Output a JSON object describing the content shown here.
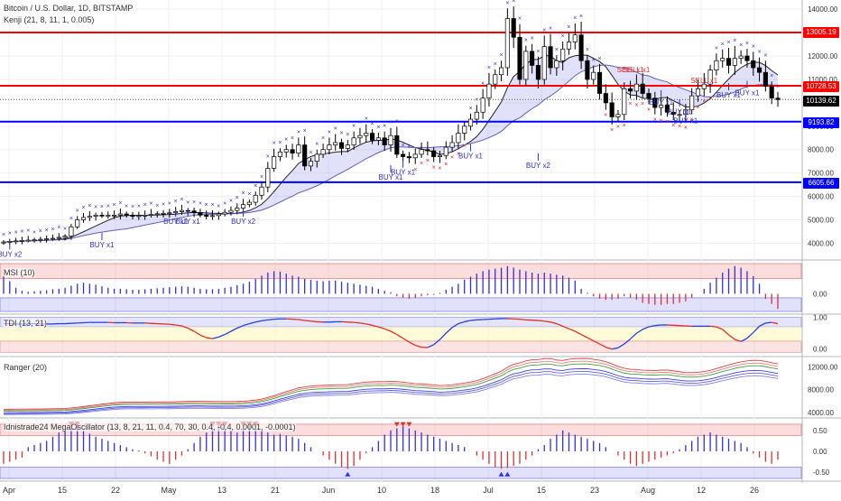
{
  "chart_data": [
    {
      "type": "candlestick",
      "title": "Bitcoin / U.S. Dollar, 1D, BITSTAMP",
      "subtitle": "Kenji (21, 8, 11, 1, 0.005)",
      "x_ticks": [
        "Apr",
        "15",
        "22",
        "May",
        "13",
        "21",
        "Jun",
        "10",
        "18",
        "Jul",
        "15",
        "23",
        "Aug",
        "12",
        "26"
      ],
      "y_ticks": [
        "4000.00",
        "5000.00",
        "6000.00",
        "7000.00",
        "8000.00",
        "9000.00",
        "10000.00",
        "11000.00",
        "12000.00",
        "13000.00",
        "14000.00"
      ],
      "ylim": [
        3400,
        14200
      ],
      "price_lines": [
        {
          "label": "13005.19",
          "value": 13005.19,
          "color": "#ff0000"
        },
        {
          "label": "10728.53",
          "value": 10728.53,
          "color": "#ff0000"
        },
        {
          "label": "9193.82",
          "value": 9193.82,
          "color": "#0000ff"
        },
        {
          "label": "6605.66",
          "value": 6605.66,
          "color": "#0000ff"
        }
      ],
      "last_price": {
        "label": "10139.62",
        "value": 10139.62
      },
      "closes": [
        4050,
        4080,
        4100,
        4120,
        4130,
        4150,
        4170,
        4190,
        4210,
        4250,
        4300,
        4700,
        5000,
        5100,
        5150,
        5200,
        5180,
        5190,
        5200,
        5250,
        5200,
        5150,
        5180,
        5200,
        5230,
        5260,
        5280,
        5300,
        5350,
        5400,
        5380,
        5300,
        5200,
        5150,
        5180,
        5250,
        5320,
        5400,
        5500,
        5650,
        5750,
        6050,
        6400,
        7200,
        7700,
        7900,
        8000,
        7850,
        8200,
        7300,
        7500,
        7800,
        8000,
        8200,
        8300,
        8050,
        8200,
        8500,
        8600,
        8700,
        8400,
        8500,
        8200,
        8600,
        7800,
        7700,
        7650,
        7800,
        8000,
        7950,
        7700,
        7750,
        8100,
        8300,
        8700,
        9000,
        9300,
        9600,
        10200,
        10800,
        11200,
        11500,
        13600,
        12800,
        11000,
        12200,
        11600,
        11000,
        12400,
        11500,
        11800,
        12300,
        12600,
        12900,
        11800,
        11000,
        11300,
        10400,
        10000,
        9400,
        9500,
        10600,
        10500,
        10800,
        10400,
        10200,
        9800,
        9900,
        9600,
        9500,
        9500,
        9700,
        10300,
        10600,
        10800,
        11400,
        11800,
        11900,
        11600,
        11900,
        12000,
        11800,
        11500,
        11300,
        10700,
        10200,
        10139.62
      ],
      "buy_labels": [
        {
          "text": "BUY x2",
          "value": 3500
        },
        {
          "text": "BUY x1",
          "value": 3900
        },
        {
          "text": "BUY x1",
          "value": 4900
        },
        {
          "text": "BUY x1",
          "value": 4900
        },
        {
          "text": "BUY x2",
          "value": 4900
        },
        {
          "text": "BUY x1",
          "value": 6800
        },
        {
          "text": "BUY x1",
          "value": 7000
        },
        {
          "text": "BUY x1",
          "value": 7700
        },
        {
          "text": "BUY x2",
          "value": 7300
        },
        {
          "text": "BUY x1",
          "value": 10000
        },
        {
          "text": "BUY x1",
          "value": 9600
        },
        {
          "text": "BUY x1",
          "value": 9200
        },
        {
          "text": "BUY x1",
          "value": 10300
        },
        {
          "text": "BUY x1",
          "value": 10400
        }
      ],
      "sell_labels": [
        {
          "text": "SELL x1",
          "value": 11300
        },
        {
          "text": "SELL x1",
          "value": 11300
        },
        {
          "text": "SELL x1",
          "value": 10850
        }
      ]
    },
    {
      "type": "bar",
      "title": "MSI (10)",
      "y_ticks": [
        "0.00"
      ],
      "ylim": [
        -0.35,
        0.6
      ],
      "values": [
        0.35,
        0.25,
        0.12,
        0.06,
        0.04,
        0.05,
        0.06,
        0.07,
        0.09,
        0.1,
        0.12,
        0.16,
        0.2,
        0.22,
        0.2,
        0.18,
        0.15,
        0.12,
        0.1,
        0.1,
        0.09,
        0.08,
        0.08,
        0.09,
        0.1,
        0.11,
        0.12,
        0.13,
        0.14,
        0.15,
        0.14,
        0.12,
        0.1,
        0.09,
        0.09,
        0.1,
        0.12,
        0.14,
        0.17,
        0.2,
        0.24,
        0.3,
        0.36,
        0.42,
        0.45,
        0.44,
        0.4,
        0.36,
        0.34,
        0.3,
        0.28,
        0.26,
        0.25,
        0.26,
        0.26,
        0.24,
        0.22,
        0.2,
        0.18,
        0.16,
        0.14,
        0.1,
        0.06,
        0.03,
        -0.05,
        -0.08,
        -0.1,
        -0.08,
        -0.05,
        -0.03,
        -0.02,
        0.02,
        0.08,
        0.14,
        0.2,
        0.28,
        0.34,
        0.4,
        0.45,
        0.48,
        0.5,
        0.52,
        0.55,
        0.52,
        0.48,
        0.45,
        0.42,
        0.4,
        0.42,
        0.4,
        0.38,
        0.36,
        0.32,
        0.26,
        0.1,
        0.02,
        -0.05,
        -0.1,
        -0.12,
        -0.12,
        -0.1,
        -0.05,
        -0.08,
        -0.12,
        -0.18,
        -0.2,
        -0.22,
        -0.22,
        -0.2,
        -0.2,
        -0.18,
        -0.15,
        -0.08,
        0.0,
        0.1,
        0.22,
        0.32,
        0.42,
        0.5,
        0.55,
        0.52,
        0.45,
        0.35,
        0.2,
        -0.1,
        -0.2,
        -0.3
      ]
    },
    {
      "type": "line",
      "title": "TDI (13, 21)",
      "y_ticks": [
        "1.00",
        "0.00"
      ],
      "ylim": [
        -0.15,
        1.1
      ],
      "values": [
        0.8,
        0.8,
        0.79,
        0.79,
        0.8,
        0.8,
        0.8,
        0.79,
        0.79,
        0.8,
        0.8,
        0.81,
        0.82,
        0.83,
        0.84,
        0.84,
        0.84,
        0.84,
        0.83,
        0.83,
        0.83,
        0.82,
        0.82,
        0.82,
        0.81,
        0.8,
        0.79,
        0.78,
        0.76,
        0.73,
        0.66,
        0.56,
        0.44,
        0.36,
        0.33,
        0.38,
        0.46,
        0.56,
        0.66,
        0.74,
        0.8,
        0.85,
        0.89,
        0.92,
        0.94,
        0.95,
        0.95,
        0.94,
        0.93,
        0.9,
        0.88,
        0.86,
        0.85,
        0.85,
        0.86,
        0.86,
        0.85,
        0.84,
        0.82,
        0.79,
        0.75,
        0.7,
        0.64,
        0.56,
        0.46,
        0.34,
        0.22,
        0.12,
        0.06,
        0.05,
        0.14,
        0.3,
        0.5,
        0.68,
        0.8,
        0.86,
        0.9,
        0.92,
        0.93,
        0.94,
        0.95,
        0.96,
        0.96,
        0.95,
        0.94,
        0.92,
        0.91,
        0.9,
        0.88,
        0.85,
        0.8,
        0.72,
        0.64,
        0.56,
        0.46,
        0.36,
        0.26,
        0.16,
        0.06,
        0.0,
        0.04,
        0.16,
        0.32,
        0.5,
        0.62,
        0.7,
        0.74,
        0.76,
        0.76,
        0.75,
        0.74,
        0.73,
        0.72,
        0.72,
        0.72,
        0.72,
        0.7,
        0.62,
        0.45,
        0.3,
        0.24,
        0.34,
        0.52,
        0.72,
        0.82,
        0.84,
        0.8
      ]
    },
    {
      "type": "line",
      "title": "Ranger (20)",
      "y_ticks": [
        "12000.00",
        "8000.00",
        "4000.00"
      ],
      "ylim": [
        3500,
        13500
      ]
    },
    {
      "type": "bar",
      "title": "Idnistrade24 MegaOscillator (13, 8, 21, 11, 0.4, 70, 30, 0.4, -0.4, 0.0001, -0.0001)",
      "y_ticks": [
        "0.50",
        "0.00",
        "-0.50"
      ],
      "ylim": [
        -0.65,
        0.8
      ],
      "values": [
        -0.3,
        -0.25,
        -0.2,
        -0.15,
        0.1,
        0.15,
        0.2,
        0.25,
        0.35,
        0.45,
        0.5,
        0.55,
        0.6,
        0.5,
        0.42,
        0.35,
        0.3,
        0.25,
        0.2,
        0.15,
        0.1,
        0.05,
        0.02,
        -0.05,
        -0.12,
        -0.2,
        -0.25,
        -0.3,
        -0.2,
        -0.1,
        0.05,
        0.2,
        0.35,
        0.45,
        0.55,
        0.6,
        0.55,
        0.5,
        0.45,
        0.55,
        0.6,
        0.55,
        0.5,
        0.45,
        0.4,
        0.42,
        0.38,
        0.35,
        0.3,
        0.2,
        0.1,
        0.0,
        -0.1,
        -0.2,
        -0.3,
        -0.38,
        -0.42,
        -0.35,
        -0.2,
        -0.05,
        0.1,
        0.25,
        0.4,
        0.5,
        0.55,
        0.6,
        0.55,
        0.5,
        0.45,
        0.4,
        0.35,
        0.3,
        0.25,
        0.2,
        0.15,
        0.1,
        0.0,
        -0.1,
        -0.2,
        -0.3,
        -0.38,
        -0.42,
        -0.4,
        -0.35,
        -0.3,
        -0.2,
        -0.1,
        0.05,
        0.15,
        0.3,
        0.4,
        0.5,
        0.45,
        0.4,
        0.35,
        0.3,
        0.25,
        0.2,
        0.1,
        0.0,
        -0.1,
        -0.2,
        -0.3,
        -0.35,
        -0.3,
        -0.25,
        -0.2,
        -0.15,
        -0.1,
        -0.05,
        0.05,
        0.15,
        0.25,
        0.35,
        0.4,
        0.45,
        0.4,
        0.35,
        0.3,
        0.25,
        0.2,
        0.1,
        -0.05,
        -0.15,
        -0.25,
        -0.3,
        -0.2
      ]
    }
  ]
}
